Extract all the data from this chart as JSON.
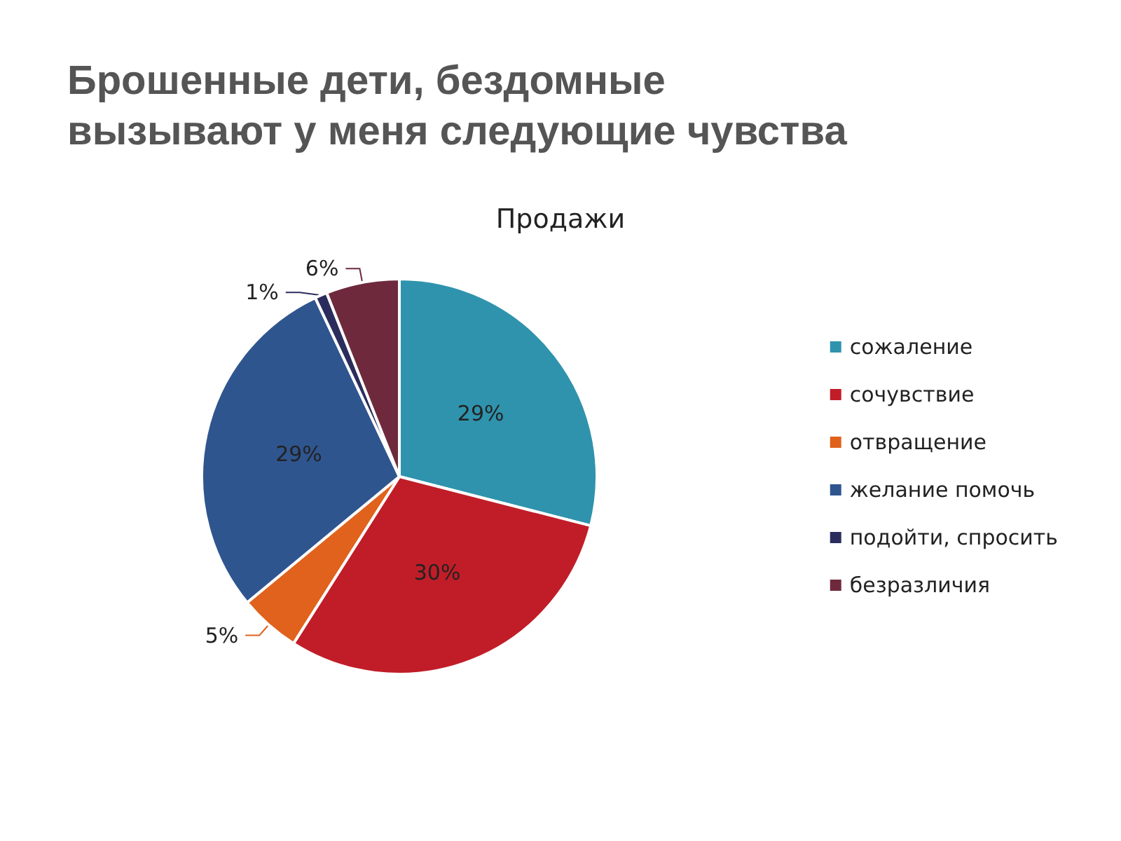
{
  "chart_data": {
    "type": "pie",
    "title": "Брошенные дети, бездомные\nвызывают у меня следующие чувства",
    "subtitle": "Продажи",
    "categories": [
      "сожаление",
      "сочувствие",
      "отвращение",
      "желание помочь",
      "подойти, спросить",
      "безразличия"
    ],
    "values": [
      29,
      30,
      5,
      29,
      1,
      6
    ],
    "colors": [
      "#2f93ad",
      "#c11d28",
      "#e0621c",
      "#2f558f",
      "#2a2d5c",
      "#6e2a3c"
    ],
    "value_labels": [
      "29%",
      "30%",
      "5%",
      "29%",
      "1%",
      "6%"
    ],
    "legend": "right"
  }
}
